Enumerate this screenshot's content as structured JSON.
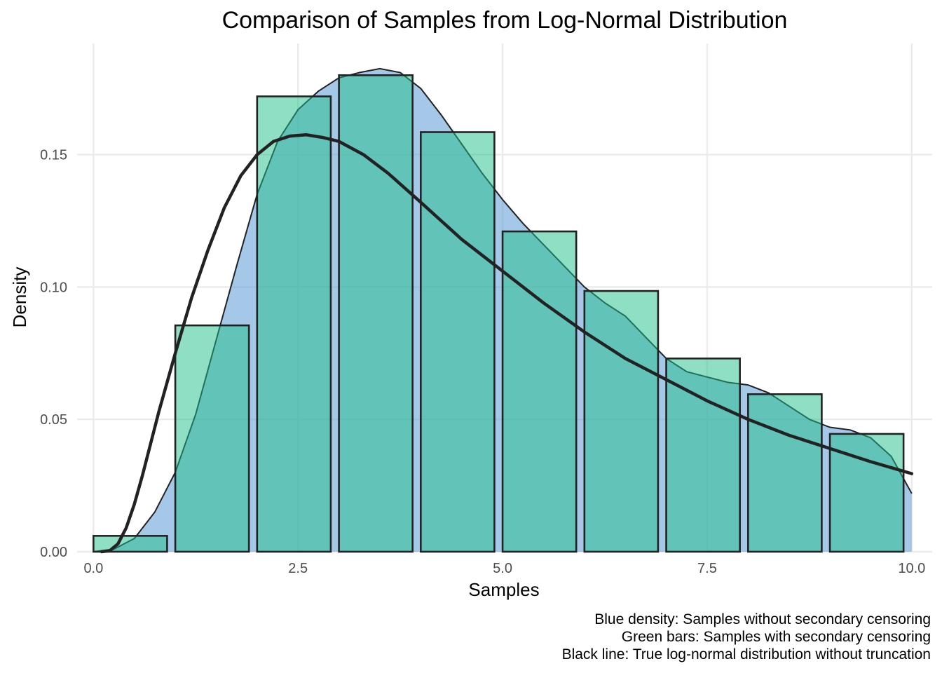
{
  "chart_data": {
    "type": "bar",
    "title": "Comparison of Samples from Log-Normal Distribution",
    "xlabel": "Samples",
    "ylabel": "Density",
    "xlim": [
      -0.2,
      10.25
    ],
    "ylim": [
      0,
      0.192
    ],
    "x_ticks": [
      0,
      2.5,
      5,
      7.5,
      10
    ],
    "x_tick_labels": [
      "0.0",
      "2.5",
      "5.0",
      "7.5",
      "10.0"
    ],
    "y_ticks": [
      0,
      0.05,
      0.1,
      0.15
    ],
    "y_tick_labels": [
      "0.00",
      "0.05",
      "0.10",
      "0.15"
    ],
    "grid": true,
    "colors": {
      "bars": "#1fbf8a",
      "density": "#5b9bd5",
      "true_line": "#222222",
      "outline": "#222222"
    },
    "bars": {
      "bin_edges": [
        0,
        1,
        2,
        3,
        4,
        5,
        6,
        7,
        8,
        9,
        10
      ],
      "values": [
        0.006,
        0.0855,
        0.172,
        0.18,
        0.1585,
        0.121,
        0.0985,
        0.073,
        0.0595,
        0.0445
      ]
    },
    "density_curve": {
      "x": [
        0,
        0.25,
        0.5,
        0.75,
        1.0,
        1.25,
        1.5,
        1.75,
        2.0,
        2.25,
        2.5,
        2.75,
        3.0,
        3.25,
        3.5,
        3.75,
        4.0,
        4.25,
        4.5,
        4.75,
        5.0,
        5.25,
        5.5,
        5.75,
        6.0,
        6.25,
        6.5,
        6.75,
        7.0,
        7.25,
        7.5,
        7.75,
        8.0,
        8.25,
        8.5,
        8.75,
        9.0,
        9.25,
        9.5,
        9.75,
        10.0
      ],
      "y": [
        0.0,
        0.001,
        0.005,
        0.015,
        0.03,
        0.052,
        0.08,
        0.108,
        0.135,
        0.155,
        0.167,
        0.174,
        0.179,
        0.181,
        0.1825,
        0.181,
        0.175,
        0.165,
        0.154,
        0.143,
        0.133,
        0.124,
        0.116,
        0.108,
        0.1,
        0.094,
        0.089,
        0.081,
        0.073,
        0.068,
        0.066,
        0.064,
        0.063,
        0.06,
        0.055,
        0.05,
        0.047,
        0.046,
        0.043,
        0.036,
        0.022
      ]
    },
    "true_curve": {
      "x": [
        0.1,
        0.2,
        0.3,
        0.4,
        0.5,
        0.6,
        0.7,
        0.8,
        0.9,
        1.0,
        1.2,
        1.4,
        1.6,
        1.8,
        2.0,
        2.2,
        2.4,
        2.6,
        2.8,
        3.0,
        3.3,
        3.6,
        4.0,
        4.5,
        5.0,
        5.5,
        6.0,
        6.5,
        7.0,
        7.5,
        8.0,
        8.5,
        9.0,
        9.5,
        10.0
      ],
      "y": [
        0.0,
        0.0004,
        0.003,
        0.009,
        0.018,
        0.029,
        0.041,
        0.053,
        0.064,
        0.075,
        0.096,
        0.114,
        0.13,
        0.142,
        0.15,
        0.155,
        0.157,
        0.1575,
        0.1565,
        0.155,
        0.15,
        0.143,
        0.132,
        0.118,
        0.106,
        0.094,
        0.083,
        0.073,
        0.065,
        0.057,
        0.05,
        0.044,
        0.039,
        0.034,
        0.0295
      ]
    }
  },
  "caption_lines": [
    "Blue density: Samples without secondary censoring",
    "Green bars: Samples with secondary censoring",
    "Black line: True log-normal distribution without truncation"
  ]
}
